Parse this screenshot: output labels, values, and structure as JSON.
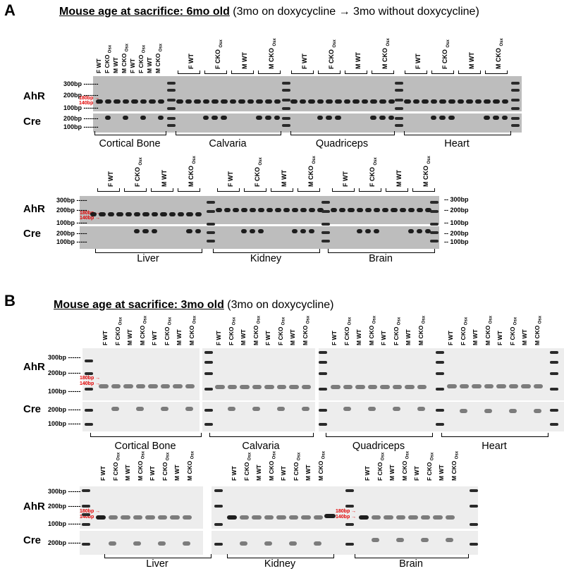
{
  "panel_a": {
    "letter": "A",
    "title_bold": "Mouse age at sacrifice: 6mo old",
    "title_rest": "(3mo on doxycycline →  3mo without doxycycline)",
    "row1_tissues": [
      "Cortical Bone",
      "Calvaria",
      "Quadriceps",
      "Heart"
    ],
    "row2_tissues": [
      "Liver",
      "Kidney",
      "Brain"
    ],
    "groups": [
      "F WT",
      "F CKO",
      "M WT",
      "M CKO"
    ],
    "group_subscript": "Osx",
    "bone_lanes": [
      "F WT",
      "F CKO",
      "M WT",
      "M CKO",
      "F WT",
      "F CKO",
      "M WT",
      "M CKO"
    ],
    "markers": {
      "m300": "300bp",
      "m200": "200bp",
      "m100": "100bp",
      "red180": "180bp →",
      "red140": "140bp →"
    },
    "right_markers": [
      "300bp",
      "200bp",
      "100bp",
      "200bp",
      "100bp"
    ],
    "row_labels": {
      "ahr": "AhR",
      "cre": "Cre"
    }
  },
  "panel_b": {
    "letter": "B",
    "title_bold": "Mouse age at sacrifice: 3mo old",
    "title_rest": "(3mo on doxycycline)",
    "row1_tissues": [
      "Cortical Bone",
      "Calvaria",
      "Quadriceps",
      "Heart"
    ],
    "row2_tissues": [
      "Liver",
      "Kidney",
      "Brain"
    ],
    "lanes": [
      "F WT",
      "F CKO",
      "M WT",
      "M CKO",
      "F WT",
      "F CKO",
      "M WT",
      "M CKO"
    ],
    "lane_subscript": "Osx",
    "markers": {
      "m300": "300bp",
      "m200": "200bp",
      "m100": "100bp",
      "red180": "180bp →",
      "red140": "140bp →",
      "cre200": "200bp",
      "cre100": "100bp"
    },
    "row_labels": {
      "ahr": "AhR",
      "cre": "Cre"
    }
  },
  "colors": {
    "band": "#1a1a1a",
    "marker_red": "#e00000",
    "gel_a": "#bdbdbd",
    "gel_b": "#ededed"
  }
}
